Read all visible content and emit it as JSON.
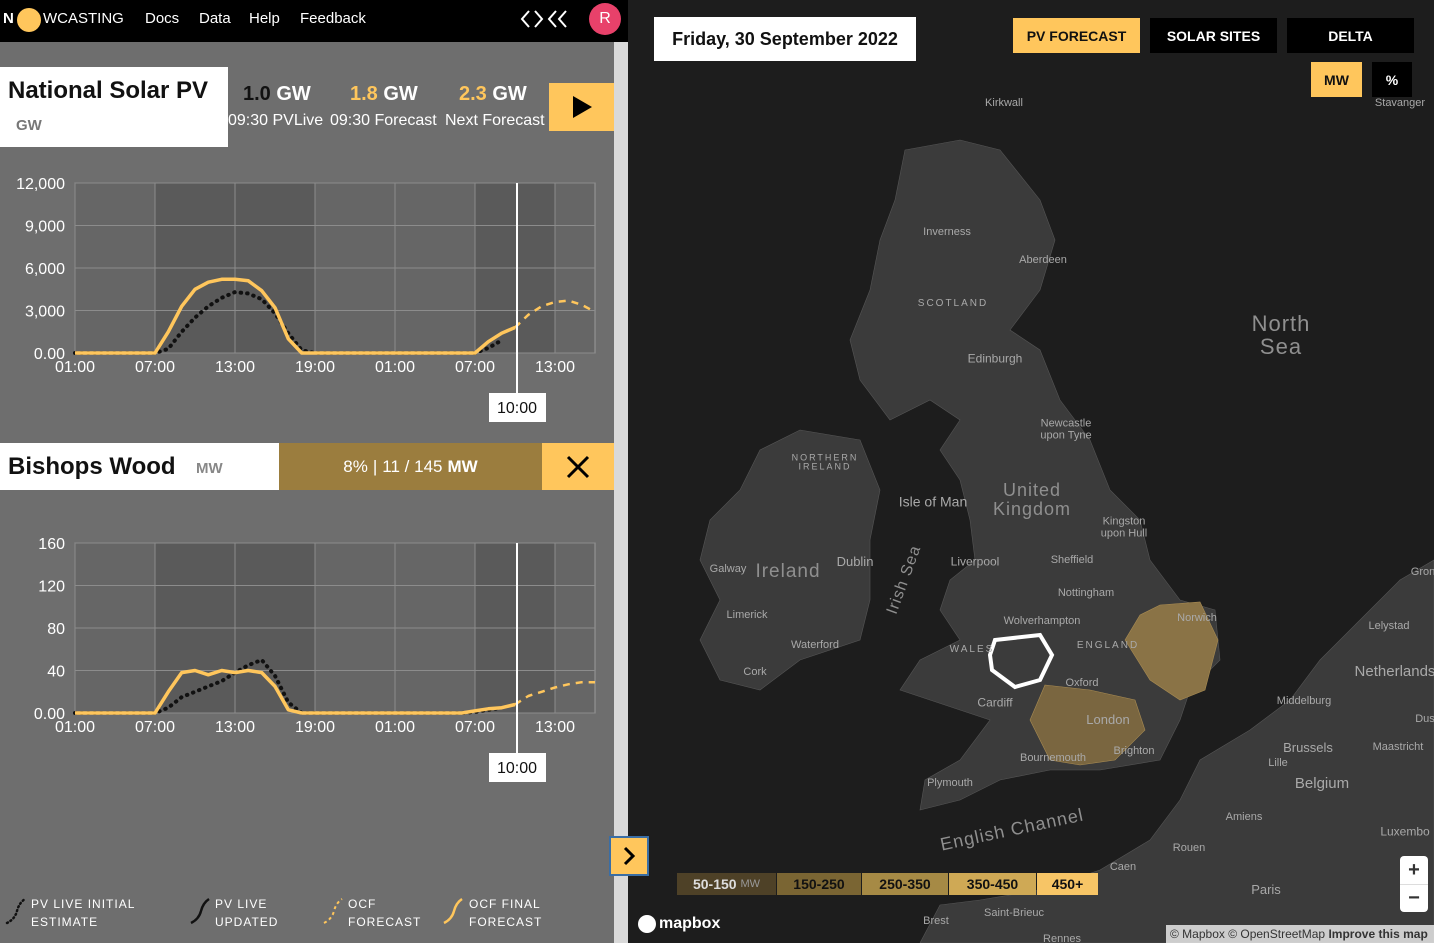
{
  "nav": {
    "logo": [
      "N",
      "WCASTING"
    ],
    "links": [
      "Docs",
      "Data",
      "Help",
      "Feedback"
    ],
    "avatar": "R"
  },
  "national": {
    "title": "National Solar PV",
    "unit": "GW",
    "stats": [
      {
        "value": "1.0",
        "unit": "GW",
        "label": "09:30 PVLive"
      },
      {
        "value": "1.8",
        "unit": "GW",
        "label": "09:30 Forecast"
      },
      {
        "value": "2.3",
        "unit": "GW",
        "label": "Next Forecast"
      }
    ],
    "chart": {
      "type": "line",
      "categories": [
        "01:00",
        null,
        null,
        null,
        null,
        null,
        "07:00",
        null,
        null,
        null,
        null,
        null,
        "13:00",
        null,
        null,
        null,
        null,
        null,
        "19:00",
        null,
        null,
        null,
        null,
        null,
        "01:00",
        null,
        null,
        null,
        null,
        null,
        "07:00",
        null,
        null,
        null,
        null,
        null,
        "13:00",
        null,
        null,
        null
      ],
      "ylim": [
        0,
        12000
      ],
      "yticks": [
        {
          "value": 0,
          "label": "0.00"
        },
        {
          "value": 3000,
          "label": "3,000"
        },
        {
          "value": 6000,
          "label": "6,000"
        },
        {
          "value": 9000,
          "label": "9,000"
        },
        {
          "value": 12000,
          "label": "12,000"
        }
      ],
      "grid": true,
      "now_label": "10:00",
      "series": [
        {
          "color": "#111111",
          "style": "dotted",
          "values": [
            0,
            0,
            0,
            0,
            0,
            0,
            0,
            300,
            1500,
            2500,
            3300,
            3900,
            4300,
            4200,
            3800,
            2800,
            1400,
            200,
            0,
            0,
            0,
            0,
            0,
            0,
            0,
            0,
            0,
            0,
            0,
            0,
            0,
            350,
            900,
            null,
            null,
            null,
            null,
            null,
            null,
            null
          ]
        },
        {
          "color": "#ffc65c",
          "style": "solid",
          "values": [
            0,
            0,
            0,
            0,
            0,
            0,
            0,
            1500,
            3300,
            4500,
            5000,
            5200,
            5200,
            5100,
            4400,
            3200,
            1000,
            0,
            0,
            0,
            0,
            0,
            0,
            0,
            0,
            0,
            0,
            0,
            0,
            0,
            0,
            800,
            1400,
            1800,
            null,
            null,
            null,
            null,
            null,
            null
          ]
        },
        {
          "color": "#ffc65c",
          "style": "dashed",
          "values": [
            null,
            null,
            null,
            null,
            null,
            null,
            null,
            null,
            null,
            null,
            null,
            null,
            null,
            null,
            null,
            null,
            null,
            null,
            null,
            null,
            null,
            null,
            null,
            null,
            null,
            null,
            null,
            null,
            null,
            null,
            null,
            null,
            null,
            1800,
            2700,
            3300,
            3600,
            3700,
            3400,
            2900
          ]
        }
      ]
    }
  },
  "site": {
    "title": "Bishops Wood",
    "unit": "MW",
    "percent": "8%",
    "separator": "|",
    "capacity": "11 / 145",
    "capacity_unit": "MW",
    "chart": {
      "type": "line",
      "categories": [
        "01:00",
        null,
        null,
        null,
        null,
        null,
        "07:00",
        null,
        null,
        null,
        null,
        null,
        "13:00",
        null,
        null,
        null,
        null,
        null,
        "19:00",
        null,
        null,
        null,
        null,
        null,
        "01:00",
        null,
        null,
        null,
        null,
        null,
        "07:00",
        null,
        null,
        null,
        null,
        null,
        "13:00",
        null,
        null,
        null
      ],
      "ylim": [
        0,
        160
      ],
      "yticks": [
        {
          "value": 0,
          "label": "0.00"
        },
        40,
        80,
        120,
        160
      ],
      "grid": true,
      "now_label": "10:00",
      "series": [
        {
          "color": "#111111",
          "style": "dotted",
          "values": [
            0,
            0,
            0,
            0,
            0,
            0,
            0,
            5,
            15,
            20,
            25,
            30,
            38,
            45,
            50,
            35,
            10,
            0,
            0,
            0,
            0,
            0,
            0,
            0,
            0,
            0,
            0,
            0,
            0,
            0,
            1,
            3,
            5,
            null,
            null,
            null,
            null,
            null,
            null,
            null
          ]
        },
        {
          "color": "#ffc65c",
          "style": "solid",
          "values": [
            0,
            0,
            0,
            0,
            0,
            0,
            0,
            20,
            38,
            40,
            36,
            40,
            38,
            40,
            38,
            25,
            3,
            0,
            0,
            0,
            0,
            0,
            0,
            0,
            0,
            0,
            0,
            0,
            0,
            0,
            2,
            4,
            5,
            8,
            null,
            null,
            null,
            null,
            null,
            null
          ]
        },
        {
          "color": "#ffc65c",
          "style": "dashed",
          "values": [
            null,
            null,
            null,
            null,
            null,
            null,
            null,
            null,
            null,
            null,
            null,
            null,
            null,
            null,
            null,
            null,
            null,
            null,
            null,
            null,
            null,
            null,
            null,
            null,
            null,
            null,
            null,
            null,
            null,
            null,
            null,
            null,
            null,
            8,
            16,
            20,
            24,
            27,
            29,
            29
          ]
        }
      ]
    }
  },
  "legend": [
    "PV LIVE INITIAL ESTIMATE",
    "PV LIVE UPDATED",
    "OCF FORECAST",
    "OCF FINAL FORECAST"
  ],
  "map": {
    "date": "Friday, 30 September 2022",
    "tabs": [
      "PV FORECAST",
      "SOLAR SITES",
      "DELTA"
    ],
    "units": [
      "MW",
      "%"
    ],
    "bins": [
      {
        "label": "50-150",
        "unit": "MW"
      },
      {
        "label": "150-250"
      },
      {
        "label": "250-350"
      },
      {
        "label": "350-450"
      },
      {
        "label": "450+"
      }
    ],
    "labels": [
      "Kirkwall",
      "Stavanger",
      "Inverness",
      "Aberdeen",
      "SCOTLAND",
      "North\nSea",
      "Edinburgh",
      "Newcastle\nupon Tyne",
      "NORTHERN\nIRELAND",
      "Isle of Man",
      "United\nKingdom",
      "Kingston\nupon Hull",
      "Dublin",
      "Irish Sea",
      "Galway",
      "Ireland",
      "Liverpool",
      "Sheffield",
      "Nottingham",
      "Limerick",
      "Wolverhampton",
      "Norwich",
      "ENGLAND",
      "Waterford",
      "WALES",
      "Cork",
      "Oxford",
      "Cardiff",
      "London",
      "Brighton",
      "Bournemouth",
      "Plymouth",
      "English Channel",
      "Middelburg",
      "Brussels",
      "Maastricht",
      "Belgium",
      "Lille",
      "Amiens",
      "Rouen",
      "Caen",
      "Paris",
      "Brest",
      "Saint-Brieuc",
      "Rennes",
      "Lelystad",
      "Netherlands",
      "Gron",
      "Dus",
      "Luxembo"
    ],
    "logo": "mapbox",
    "attribution": "© Mapbox © OpenStreetMap",
    "improve": "Improve this map",
    "zoom": [
      "+",
      "−"
    ]
  }
}
